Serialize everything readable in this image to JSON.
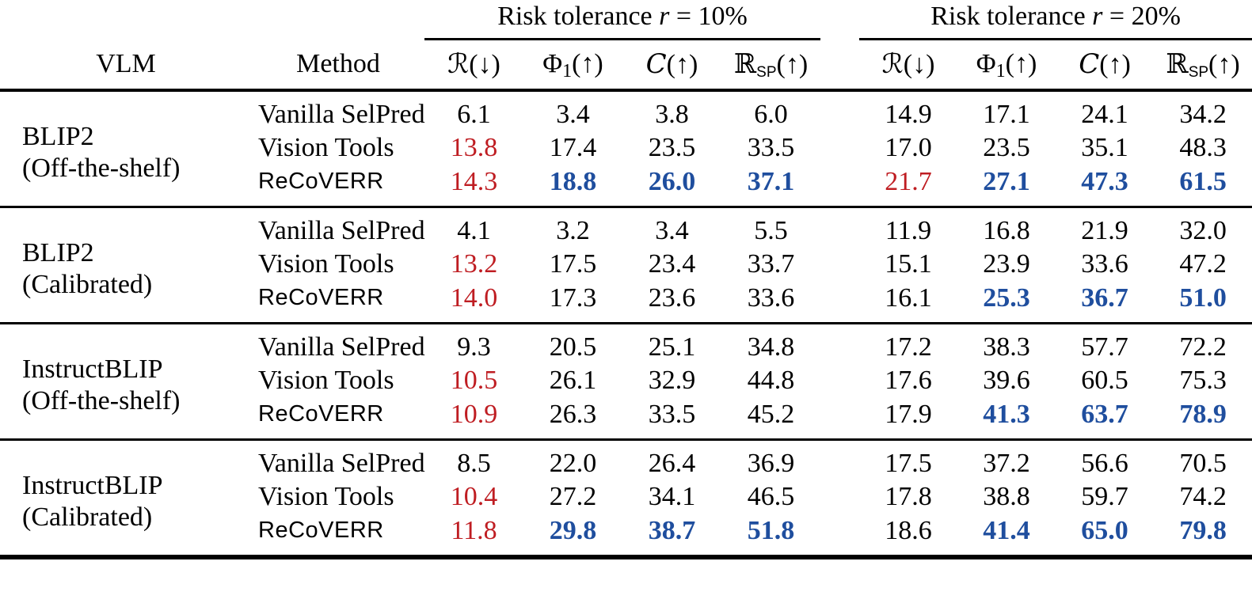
{
  "colors": {
    "red": "#bf1d22",
    "blue": "#1f4e9e"
  },
  "table": {
    "header": {
      "vlm": "VLM",
      "method": "Method",
      "groups": [
        {
          "prefix": "Risk tolerance ",
          "var": "r",
          "suffix": " = 10%"
        },
        {
          "prefix": "Risk tolerance ",
          "var": "r",
          "suffix": " = 20%"
        }
      ],
      "metrics": [
        {
          "base": "ℛ",
          "cal": false,
          "sub": "",
          "tail": "(↓)"
        },
        {
          "base": "Φ",
          "cal": false,
          "sub": "1",
          "tail": "(↑)"
        },
        {
          "base": "C",
          "cal": true,
          "sub": "",
          "tail": "(↑)"
        },
        {
          "base": "ℝ",
          "cal": false,
          "sub": "SP",
          "tail": "(↑)"
        }
      ]
    },
    "blocks": [
      {
        "vlm_line1": "BLIP2",
        "vlm_line2": "(Off-the-shelf)",
        "rows": [
          {
            "method": "Vanilla SelPred",
            "sans": false,
            "r10": [
              {
                "v": "6.1",
                "c": "black"
              },
              {
                "v": "3.4",
                "c": "black"
              },
              {
                "v": "3.8",
                "c": "black"
              },
              {
                "v": "6.0",
                "c": "black"
              }
            ],
            "r20": [
              {
                "v": "14.9",
                "c": "black"
              },
              {
                "v": "17.1",
                "c": "black"
              },
              {
                "v": "24.1",
                "c": "black"
              },
              {
                "v": "34.2",
                "c": "black"
              }
            ]
          },
          {
            "method": "Vision Tools",
            "sans": false,
            "r10": [
              {
                "v": "13.8",
                "c": "red"
              },
              {
                "v": "17.4",
                "c": "black"
              },
              {
                "v": "23.5",
                "c": "black"
              },
              {
                "v": "33.5",
                "c": "black"
              }
            ],
            "r20": [
              {
                "v": "17.0",
                "c": "black"
              },
              {
                "v": "23.5",
                "c": "black"
              },
              {
                "v": "35.1",
                "c": "black"
              },
              {
                "v": "48.3",
                "c": "black"
              }
            ]
          },
          {
            "method": "ReCoVERR",
            "sans": true,
            "r10": [
              {
                "v": "14.3",
                "c": "red"
              },
              {
                "v": "18.8",
                "c": "blue"
              },
              {
                "v": "26.0",
                "c": "blue"
              },
              {
                "v": "37.1",
                "c": "blue"
              }
            ],
            "r20": [
              {
                "v": "21.7",
                "c": "red"
              },
              {
                "v": "27.1",
                "c": "blue"
              },
              {
                "v": "47.3",
                "c": "blue"
              },
              {
                "v": "61.5",
                "c": "blue"
              }
            ]
          }
        ]
      },
      {
        "vlm_line1": "BLIP2",
        "vlm_line2": "(Calibrated)",
        "rows": [
          {
            "method": "Vanilla SelPred",
            "sans": false,
            "r10": [
              {
                "v": "4.1",
                "c": "black"
              },
              {
                "v": "3.2",
                "c": "black"
              },
              {
                "v": "3.4",
                "c": "black"
              },
              {
                "v": "5.5",
                "c": "black"
              }
            ],
            "r20": [
              {
                "v": "11.9",
                "c": "black"
              },
              {
                "v": "16.8",
                "c": "black"
              },
              {
                "v": "21.9",
                "c": "black"
              },
              {
                "v": "32.0",
                "c": "black"
              }
            ]
          },
          {
            "method": "Vision Tools",
            "sans": false,
            "r10": [
              {
                "v": "13.2",
                "c": "red"
              },
              {
                "v": "17.5",
                "c": "black"
              },
              {
                "v": "23.4",
                "c": "black"
              },
              {
                "v": "33.7",
                "c": "black"
              }
            ],
            "r20": [
              {
                "v": "15.1",
                "c": "black"
              },
              {
                "v": "23.9",
                "c": "black"
              },
              {
                "v": "33.6",
                "c": "black"
              },
              {
                "v": "47.2",
                "c": "black"
              }
            ]
          },
          {
            "method": "ReCoVERR",
            "sans": true,
            "r10": [
              {
                "v": "14.0",
                "c": "red"
              },
              {
                "v": "17.3",
                "c": "black"
              },
              {
                "v": "23.6",
                "c": "black"
              },
              {
                "v": "33.6",
                "c": "black"
              }
            ],
            "r20": [
              {
                "v": "16.1",
                "c": "black"
              },
              {
                "v": "25.3",
                "c": "blue"
              },
              {
                "v": "36.7",
                "c": "blue"
              },
              {
                "v": "51.0",
                "c": "blue"
              }
            ]
          }
        ]
      },
      {
        "vlm_line1": "InstructBLIP",
        "vlm_line2": "(Off-the-shelf)",
        "rows": [
          {
            "method": "Vanilla SelPred",
            "sans": false,
            "r10": [
              {
                "v": "9.3",
                "c": "black"
              },
              {
                "v": "20.5",
                "c": "black"
              },
              {
                "v": "25.1",
                "c": "black"
              },
              {
                "v": "34.8",
                "c": "black"
              }
            ],
            "r20": [
              {
                "v": "17.2",
                "c": "black"
              },
              {
                "v": "38.3",
                "c": "black"
              },
              {
                "v": "57.7",
                "c": "black"
              },
              {
                "v": "72.2",
                "c": "black"
              }
            ]
          },
          {
            "method": "Vision Tools",
            "sans": false,
            "r10": [
              {
                "v": "10.5",
                "c": "red"
              },
              {
                "v": "26.1",
                "c": "black"
              },
              {
                "v": "32.9",
                "c": "black"
              },
              {
                "v": "44.8",
                "c": "black"
              }
            ],
            "r20": [
              {
                "v": "17.6",
                "c": "black"
              },
              {
                "v": "39.6",
                "c": "black"
              },
              {
                "v": "60.5",
                "c": "black"
              },
              {
                "v": "75.3",
                "c": "black"
              }
            ]
          },
          {
            "method": "ReCoVERR",
            "sans": true,
            "r10": [
              {
                "v": "10.9",
                "c": "red"
              },
              {
                "v": "26.3",
                "c": "black"
              },
              {
                "v": "33.5",
                "c": "black"
              },
              {
                "v": "45.2",
                "c": "black"
              }
            ],
            "r20": [
              {
                "v": "17.9",
                "c": "black"
              },
              {
                "v": "41.3",
                "c": "blue"
              },
              {
                "v": "63.7",
                "c": "blue"
              },
              {
                "v": "78.9",
                "c": "blue"
              }
            ]
          }
        ]
      },
      {
        "vlm_line1": "InstructBLIP",
        "vlm_line2": "(Calibrated)",
        "rows": [
          {
            "method": "Vanilla SelPred",
            "sans": false,
            "r10": [
              {
                "v": "8.5",
                "c": "black"
              },
              {
                "v": "22.0",
                "c": "black"
              },
              {
                "v": "26.4",
                "c": "black"
              },
              {
                "v": "36.9",
                "c": "black"
              }
            ],
            "r20": [
              {
                "v": "17.5",
                "c": "black"
              },
              {
                "v": "37.2",
                "c": "black"
              },
              {
                "v": "56.6",
                "c": "black"
              },
              {
                "v": "70.5",
                "c": "black"
              }
            ]
          },
          {
            "method": "Vision Tools",
            "sans": false,
            "r10": [
              {
                "v": "10.4",
                "c": "red"
              },
              {
                "v": "27.2",
                "c": "black"
              },
              {
                "v": "34.1",
                "c": "black"
              },
              {
                "v": "46.5",
                "c": "black"
              }
            ],
            "r20": [
              {
                "v": "17.8",
                "c": "black"
              },
              {
                "v": "38.8",
                "c": "black"
              },
              {
                "v": "59.7",
                "c": "black"
              },
              {
                "v": "74.2",
                "c": "black"
              }
            ]
          },
          {
            "method": "ReCoVERR",
            "sans": true,
            "r10": [
              {
                "v": "11.8",
                "c": "red"
              },
              {
                "v": "29.8",
                "c": "blue"
              },
              {
                "v": "38.7",
                "c": "blue"
              },
              {
                "v": "51.8",
                "c": "blue"
              }
            ],
            "r20": [
              {
                "v": "18.6",
                "c": "black"
              },
              {
                "v": "41.4",
                "c": "blue"
              },
              {
                "v": "65.0",
                "c": "blue"
              },
              {
                "v": "79.8",
                "c": "blue"
              }
            ]
          }
        ]
      }
    ]
  }
}
